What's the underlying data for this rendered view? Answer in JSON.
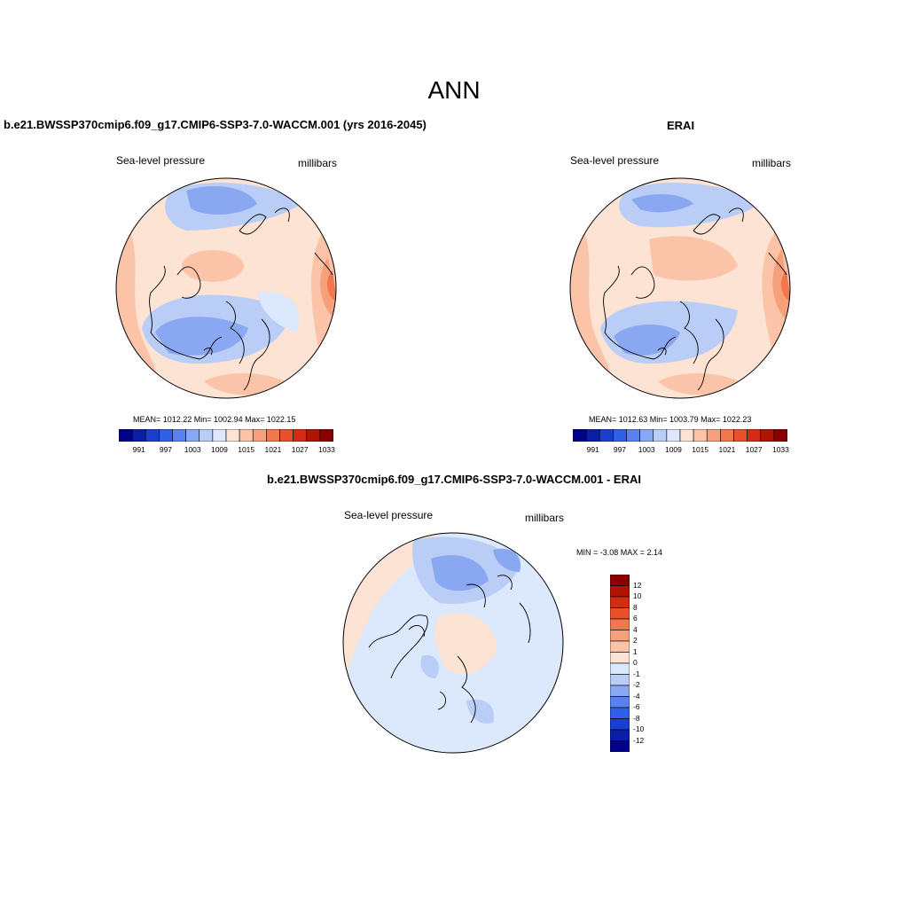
{
  "figure": {
    "title": "ANN"
  },
  "panels": {
    "model": {
      "title": "b.e21.BWSSP370cmip6.f09_g17.CMIP6-SSP3-7.0-WACCM.001 (yrs 2016-2045)",
      "variable": "Sea-level pressure",
      "units": "millibars",
      "stats": "MEAN= 1012.22  Min= 1002.94  Max= 1022.15"
    },
    "obs": {
      "title": "ERAI",
      "variable": "Sea-level pressure",
      "units": "millibars",
      "stats": "MEAN= 1012.63  Min= 1003.79  Max= 1022.23"
    },
    "diff": {
      "title": "b.e21.BWSSP370cmip6.f09_g17.CMIP6-SSP3-7.0-WACCM.001 - ERAI",
      "variable": "Sea-level pressure",
      "units": "millibars",
      "stats": "MIN =  -3.08 MAX =   2.14"
    }
  },
  "colorbars": {
    "slp": {
      "tick_labels": [
        "991",
        "997",
        "1003",
        "1009",
        "1015",
        "1021",
        "1027",
        "1033"
      ],
      "colors": [
        "#00008b",
        "#0a1fa8",
        "#1a3fd0",
        "#3060e8",
        "#5a82ee",
        "#8aa8f2",
        "#b9cdf6",
        "#dce8fb",
        "#fde3d3",
        "#fbc4a8",
        "#f7a07c",
        "#f27650",
        "#e8502a",
        "#d32c12",
        "#b01405",
        "#8b0000"
      ]
    },
    "diff": {
      "tick_labels": [
        "12",
        "10",
        "8",
        "6",
        "4",
        "2",
        "1",
        "0",
        "-1",
        "-2",
        "-4",
        "-6",
        "-8",
        "-10",
        "-12"
      ],
      "colors": [
        "#8b0000",
        "#b01405",
        "#d32c12",
        "#e8502a",
        "#f27650",
        "#f7a07c",
        "#fbc4a8",
        "#fde3d3",
        "#dce8fb",
        "#b9cdf6",
        "#8aa8f2",
        "#5a82ee",
        "#3060e8",
        "#1a3fd0",
        "#0a1fa8",
        "#00008b"
      ]
    }
  }
}
